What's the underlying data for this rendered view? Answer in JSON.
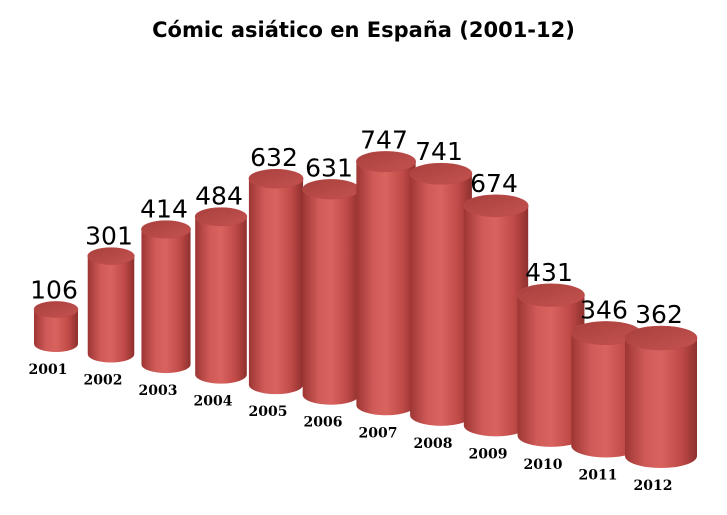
{
  "chart_data": {
    "type": "bar",
    "title": "Cómic asiático en España (2001-12)",
    "xlabel": "",
    "ylabel": "",
    "categories": [
      "2001",
      "2002",
      "2003",
      "2004",
      "2005",
      "2006",
      "2007",
      "2008",
      "2009",
      "2010",
      "2011",
      "2012"
    ],
    "values": [
      106,
      301,
      414,
      484,
      632,
      631,
      747,
      741,
      674,
      431,
      346,
      362
    ],
    "bar_shape": "3d-cylinder",
    "bar_color": "#c0504d",
    "data_labels": true,
    "grid": false,
    "legend": "none"
  }
}
